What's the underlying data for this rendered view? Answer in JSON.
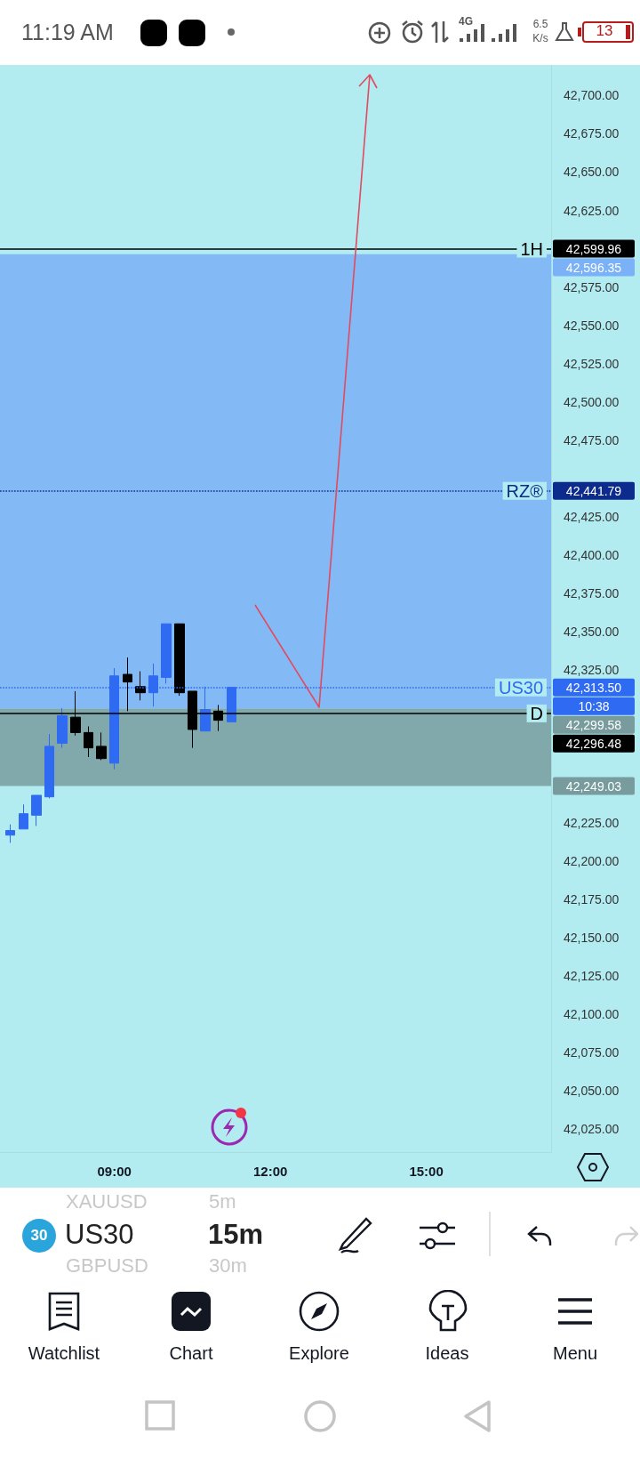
{
  "chart_data": {
    "type": "candlestick",
    "x": [
      7,
      7.25,
      7.5,
      7.75,
      8,
      8.25,
      8.5,
      8.75,
      9,
      9.25,
      9.5,
      9.75,
      10,
      10.25,
      10.5,
      10.75,
      11,
      11.25
    ],
    "ohlc": [
      [
        42217,
        42224,
        42212,
        42220
      ],
      [
        42221,
        42237,
        42221,
        42231
      ],
      [
        42230,
        42243,
        42223,
        42243
      ],
      [
        42242,
        42283,
        42241,
        42275
      ],
      [
        42277,
        42300,
        42274,
        42295
      ],
      [
        42294,
        42311,
        42282,
        42284
      ],
      [
        42284,
        42288,
        42268,
        42274
      ],
      [
        42275,
        42284,
        42266,
        42267
      ],
      [
        42264,
        42326,
        42260,
        42321
      ],
      [
        42322,
        42333,
        42298,
        42317
      ],
      [
        42314,
        42324,
        42305,
        42310
      ],
      [
        42310,
        42329,
        42301,
        42321
      ],
      [
        42320,
        42355,
        42316,
        42355
      ],
      [
        42355,
        42355,
        42308,
        42310
      ],
      [
        42311,
        42311,
        42274,
        42286
      ],
      [
        42285,
        42314,
        42285,
        42299
      ],
      [
        42298,
        42302,
        42285,
        42292
      ],
      [
        42291,
        42313.5,
        42291,
        42313.5
      ]
    ],
    "colors": [
      "#2f6bf2",
      "#2f6bf2",
      "#2f6bf2",
      "#2f6bf2",
      "#2f6bf2",
      "#000000",
      "#000000",
      "#000000",
      "#2f6bf2",
      "#000000",
      "#000000",
      "#2f6bf2",
      "#2f6bf2",
      "#000000",
      "#000000",
      "#2f6bf2",
      "#000000",
      "#2f6bf2"
    ],
    "xlim": [
      6.8,
      17.4
    ],
    "xticks": [
      {
        "value": 9,
        "label": "09:00"
      },
      {
        "value": 12,
        "label": "12:00"
      },
      {
        "value": 15,
        "label": "15:00"
      }
    ],
    "ylim": [
      42010,
      42720
    ],
    "yticks": [
      {
        "value": 42025,
        "label": "42,025.00"
      },
      {
        "value": 42050,
        "label": "42,050.00"
      },
      {
        "value": 42075,
        "label": "42,075.00"
      },
      {
        "value": 42100,
        "label": "42,100.00"
      },
      {
        "value": 42125,
        "label": "42,125.00"
      },
      {
        "value": 42150,
        "label": "42,150.00"
      },
      {
        "value": 42175,
        "label": "42,175.00"
      },
      {
        "value": 42200,
        "label": "42,200.00"
      },
      {
        "value": 42225,
        "label": "42,225.00"
      },
      {
        "value": 42325,
        "label": "42,325.00"
      },
      {
        "value": 42350,
        "label": "42,350.00"
      },
      {
        "value": 42375,
        "label": "42,375.00"
      },
      {
        "value": 42400,
        "label": "42,400.00"
      },
      {
        "value": 42425,
        "label": "42,425.00"
      },
      {
        "value": 42475,
        "label": "42,475.00"
      },
      {
        "value": 42500,
        "label": "42,500.00"
      },
      {
        "value": 42525,
        "label": "42,525.00"
      },
      {
        "value": 42550,
        "label": "42,550.00"
      },
      {
        "value": 42575,
        "label": "42,575.00"
      },
      {
        "value": 42625,
        "label": "42,625.00"
      },
      {
        "value": 42650,
        "label": "42,650.00"
      },
      {
        "value": 42675,
        "label": "42,675.00"
      },
      {
        "value": 42700,
        "label": "42,700.00"
      }
    ],
    "ref_lines": [
      {
        "axis": "y",
        "value": 42599.96,
        "label": "1H",
        "color": "#000000",
        "line_style": "solid"
      },
      {
        "axis": "y",
        "value": 42441.79,
        "label": "RZ®",
        "color": "#0d2b8c",
        "line_style": "dotted"
      },
      {
        "axis": "y",
        "value": 42313.5,
        "label": "US30",
        "color": "#2f6bf2",
        "line_style": "dotted"
      },
      {
        "axis": "y",
        "value": 42296.48,
        "label": "D",
        "color": "#000000",
        "line_style": "solid"
      }
    ],
    "bands": [
      {
        "axis": "y",
        "from": 42299.58,
        "to": 42596.35,
        "color": "#7ab1f7"
      },
      {
        "axis": "y",
        "from": 42249.03,
        "to": 42299.58,
        "color": "#789c9d"
      }
    ],
    "annotations": [
      "11:19 AM",
      "4G",
      "6.5",
      "K/s",
      "13",
      "XAUUSD",
      "5m",
      "30",
      "US30",
      "15m",
      "GBPUSD",
      "30m",
      "Watchlist",
      "Chart",
      "Explore",
      "Ideas",
      "Menu",
      "42,599.96",
      "42,596.35",
      "42,441.79",
      "42,313.50",
      "10:38",
      "42,299.58",
      "42,296.48",
      "42,249.03"
    ]
  }
}
